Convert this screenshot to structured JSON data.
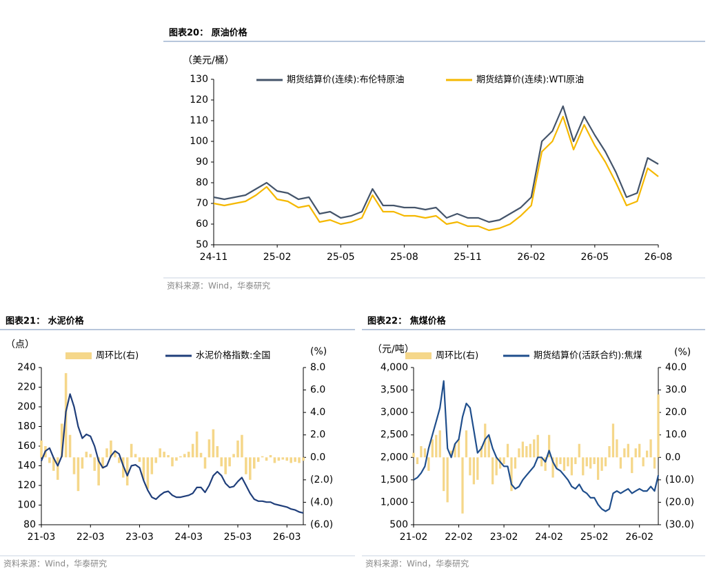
{
  "chart_data": [
    {
      "type": "line",
      "title": "图表20： 原油价格",
      "y_label": "（美元/桶）",
      "source": "资料来源：Wind，华泰研究",
      "categories": [
        "24-11",
        null,
        null,
        null,
        null,
        null,
        "25-02",
        null,
        null,
        null,
        null,
        null,
        "25-05",
        null,
        null,
        null,
        null,
        null,
        "25-08",
        null,
        null,
        null,
        null,
        null,
        "25-11",
        null,
        null,
        null,
        null,
        null,
        "26-02",
        null,
        null,
        null,
        null,
        null,
        "26-05",
        null,
        null,
        null,
        null,
        null,
        "26-08"
      ],
      "series": [
        {
          "name": "期货结算价(连续):布伦特原油",
          "color": "#44546a",
          "values": [
            73,
            72,
            73,
            74,
            77,
            80,
            76,
            75,
            72,
            73,
            65,
            66,
            63,
            64,
            66,
            77,
            69,
            69,
            68,
            68,
            67,
            68,
            63,
            65,
            63,
            63,
            61,
            62,
            65,
            68,
            73,
            100,
            105,
            117,
            100,
            112,
            103,
            95,
            85,
            73,
            75,
            92,
            89
          ]
        },
        {
          "name": "期货结算价(连续):WTI原油",
          "color": "#f5b800",
          "values": [
            70,
            69,
            70,
            71,
            74,
            78,
            72,
            71,
            68,
            69,
            61,
            62,
            60,
            61,
            63,
            74,
            66,
            66,
            64,
            64,
            63,
            64,
            60,
            61,
            59,
            59,
            57,
            58,
            60,
            64,
            69,
            95,
            100,
            112,
            96,
            108,
            98,
            90,
            80,
            69,
            71,
            87,
            83
          ]
        }
      ],
      "ylim": [
        50,
        130
      ],
      "yticks": [
        50,
        60,
        70,
        80,
        90,
        100,
        110,
        120,
        130
      ],
      "legend": "top"
    },
    {
      "type": "combo",
      "title": "图表21： 水泥价格",
      "y_label": "（点）",
      "y2_label": "(%)",
      "source": "资料来源：Wind，华泰研究",
      "categories": [
        "21-03",
        null,
        null,
        null,
        null,
        null,
        null,
        null,
        null,
        null,
        null,
        null,
        "22-03",
        null,
        null,
        null,
        null,
        null,
        null,
        null,
        null,
        null,
        null,
        null,
        "23-03",
        null,
        null,
        null,
        null,
        null,
        null,
        null,
        null,
        null,
        null,
        null,
        "24-03",
        null,
        null,
        null,
        null,
        null,
        null,
        null,
        null,
        null,
        null,
        null,
        "25-03",
        null,
        null,
        null,
        null,
        null,
        null,
        null,
        null,
        null,
        null,
        null,
        "26-03",
        null,
        null,
        null,
        null
      ],
      "series": [
        {
          "name": "周环比(右)",
          "color": "#f5d78a",
          "axis": "y2",
          "values": [
            1.5,
            1.0,
            -0.5,
            -1.2,
            -2.0,
            3.0,
            7.5,
            2.0,
            -1.5,
            -3.0,
            -1.0,
            0.5,
            0.3,
            -1.2,
            -2.5,
            -1.0,
            0.8,
            1.5,
            0.5,
            -0.5,
            -1.8,
            -2.5,
            1.2,
            0.3,
            -0.4,
            -2.0,
            -2.8,
            -1.5,
            -0.5,
            0.8,
            0.5,
            0.2,
            -0.8,
            -0.3,
            0.1,
            0.3,
            0.5,
            1.2,
            2.3,
            0.4,
            -1.0,
            1.6,
            2.5,
            1.0,
            -0.8,
            -1.5,
            -0.8,
            0.3,
            1.5,
            2.0,
            -1.5,
            -2.0,
            -1.0,
            -0.4,
            0.1,
            -0.3,
            0.2,
            -0.5,
            -0.3,
            -0.2,
            -0.3,
            -0.5,
            -0.4,
            -0.5,
            -0.3
          ]
        },
        {
          "name": "水泥价格指数:全国",
          "color": "#1f3e7a",
          "values": [
            145,
            155,
            158,
            148,
            140,
            150,
            195,
            213,
            200,
            180,
            168,
            172,
            170,
            160,
            145,
            138,
            140,
            150,
            155,
            152,
            140,
            130,
            140,
            141,
            138,
            125,
            115,
            108,
            106,
            110,
            113,
            114,
            110,
            108,
            108,
            109,
            110,
            112,
            118,
            118,
            113,
            120,
            130,
            134,
            130,
            122,
            118,
            119,
            124,
            128,
            120,
            112,
            106,
            104,
            104,
            103,
            103,
            101,
            100,
            99,
            98,
            96,
            95,
            93,
            92
          ]
        }
      ],
      "ylim": [
        80,
        240
      ],
      "yticks": [
        80,
        100,
        120,
        140,
        160,
        180,
        200,
        220,
        240
      ],
      "y2lim": [
        -6,
        8
      ],
      "y2ticks": [
        {
          "value": -6,
          "label": "(6.0)"
        },
        {
          "value": -4,
          "label": "(4.0)"
        },
        {
          "value": -2,
          "label": "(2.0)"
        },
        {
          "value": 0,
          "label": "0.0"
        },
        {
          "value": 2,
          "label": "2.0"
        },
        {
          "value": 4,
          "label": "4.0"
        },
        {
          "value": 6,
          "label": "6.0"
        },
        {
          "value": 8,
          "label": "8.0"
        }
      ],
      "legend": "top"
    },
    {
      "type": "combo",
      "title": "图表22： 焦煤价格",
      "y_label": "（元/吨）",
      "y2_label": "(%)",
      "source": "资料来源：Wind，华泰研究",
      "categories": [
        "21-02",
        null,
        null,
        null,
        null,
        null,
        null,
        null,
        null,
        null,
        null,
        null,
        "22-02",
        null,
        null,
        null,
        null,
        null,
        null,
        null,
        null,
        null,
        null,
        null,
        "23-02",
        null,
        null,
        null,
        null,
        null,
        null,
        null,
        null,
        null,
        null,
        null,
        "24-02",
        null,
        null,
        null,
        null,
        null,
        null,
        null,
        null,
        null,
        null,
        null,
        "25-02",
        null,
        null,
        null,
        null,
        null,
        null,
        null,
        null,
        null,
        null,
        null,
        "26-02",
        null,
        null,
        null,
        null,
        null
      ],
      "series": [
        {
          "name": "周环比(右)",
          "color": "#f5d78a",
          "axis": "y2",
          "values": [
            2,
            -3,
            5,
            4,
            -6,
            8,
            10,
            12,
            -15,
            -20,
            3,
            6,
            8,
            -25,
            12,
            -8,
            -12,
            -10,
            5,
            15,
            9,
            -12,
            -8,
            -5,
            -3,
            6,
            -15,
            -5,
            4,
            7,
            5,
            6,
            8,
            10,
            -4,
            -6,
            10,
            -9,
            -5,
            -3,
            -6,
            -4,
            -8,
            -3,
            6,
            -8,
            -4,
            -5,
            -3,
            -10,
            -6,
            -4,
            5,
            15,
            8,
            -5,
            4,
            6,
            -7,
            4,
            6,
            -4,
            3,
            8,
            -5,
            28
          ]
        },
        {
          "name": "期货结算价(活跃合约):焦煤",
          "color": "#1f4e8c",
          "values": [
            1500,
            1550,
            1650,
            1800,
            2200,
            2500,
            2800,
            3100,
            3700,
            2200,
            2000,
            2300,
            2400,
            2900,
            3200,
            3100,
            2600,
            2100,
            2200,
            2400,
            2500,
            2200,
            2000,
            1900,
            1800,
            1800,
            1400,
            1300,
            1350,
            1500,
            1600,
            1700,
            1800,
            2000,
            2000,
            1900,
            2150,
            1900,
            1750,
            1700,
            1600,
            1500,
            1350,
            1300,
            1400,
            1250,
            1200,
            1100,
            1100,
            950,
            850,
            800,
            850,
            1200,
            1250,
            1200,
            1250,
            1300,
            1200,
            1250,
            1300,
            1250,
            1250,
            1350,
            1250,
            1600
          ]
        }
      ],
      "ylim": [
        500,
        4000
      ],
      "yticks": [
        {
          "value": 500,
          "label": "500"
        },
        {
          "value": 1000,
          "label": "1,000"
        },
        {
          "value": 1500,
          "label": "1,500"
        },
        {
          "value": 2000,
          "label": "2,000"
        },
        {
          "value": 2500,
          "label": "2,500"
        },
        {
          "value": 3000,
          "label": "3,000"
        },
        {
          "value": 3500,
          "label": "3,500"
        },
        {
          "value": 4000,
          "label": "4,000"
        }
      ],
      "y2lim": [
        -30,
        40
      ],
      "y2ticks": [
        {
          "value": -30,
          "label": "(30.0)"
        },
        {
          "value": -20,
          "label": "(20.0)"
        },
        {
          "value": -10,
          "label": "(10.0)"
        },
        {
          "value": 0,
          "label": "0.0"
        },
        {
          "value": 10,
          "label": "10.0"
        },
        {
          "value": 20,
          "label": "20.0"
        },
        {
          "value": 30,
          "label": "30.0"
        },
        {
          "value": 40,
          "label": "40.0"
        }
      ],
      "legend": "top"
    }
  ]
}
